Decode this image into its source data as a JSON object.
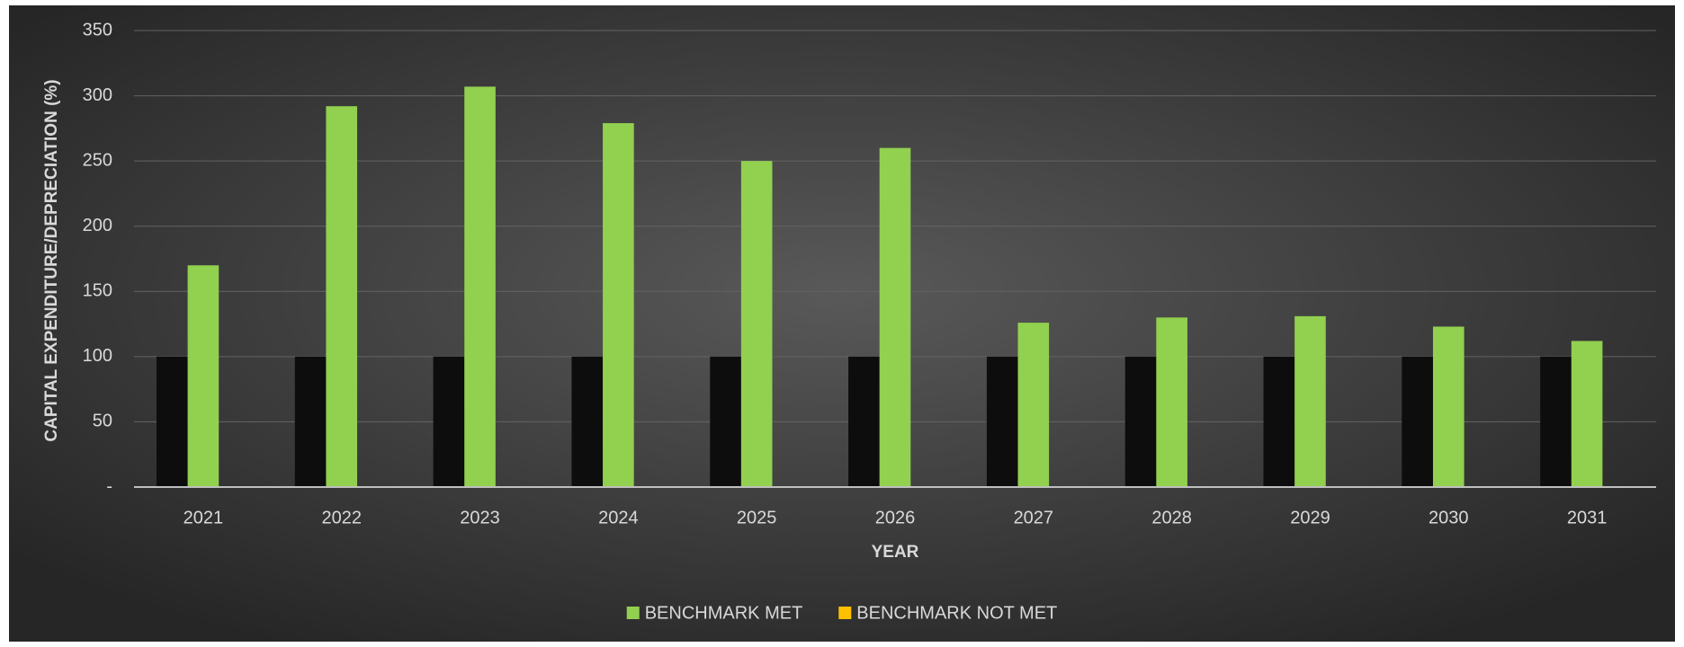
{
  "chart_data": {
    "type": "bar",
    "x_label": "YEAR",
    "y_label": "CAPITAL EXPENDITURE/DEPRECIATION (%)",
    "categories": [
      "2021",
      "2022",
      "2023",
      "2024",
      "2025",
      "2026",
      "2027",
      "2028",
      "2029",
      "2030",
      "2031"
    ],
    "series": [
      {
        "color": "#0d0d0d",
        "values": [
          100,
          100,
          100,
          100,
          100,
          100,
          100,
          100,
          100,
          100,
          100
        ]
      },
      {
        "name": "BENCHMARK MET",
        "color": "#92d050",
        "values": [
          170,
          292,
          307,
          279,
          250,
          260,
          126,
          130,
          131,
          123,
          112
        ]
      },
      {
        "name": "BENCHMARK NOT MET",
        "color": "#ffc000",
        "values": [
          null,
          null,
          null,
          null,
          null,
          null,
          null,
          null,
          null,
          null,
          null
        ]
      }
    ],
    "ylim": [
      0,
      350
    ],
    "yticks": [
      {
        "value": 0,
        "label": "-"
      },
      50,
      100,
      150,
      200,
      250,
      300,
      350
    ],
    "grid": true,
    "legend": "bottom"
  }
}
